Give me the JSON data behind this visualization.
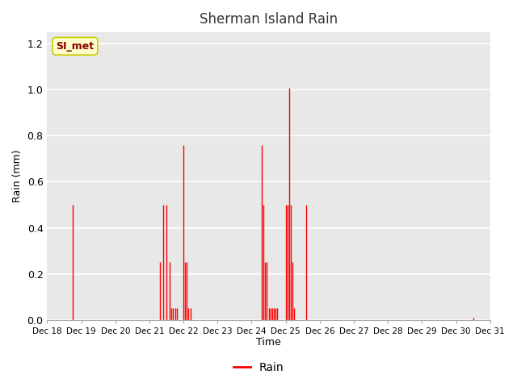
{
  "title": "Sherman Island Rain",
  "xlabel": "Time",
  "ylabel": "Rain (mm)",
  "ylim": [
    0,
    1.25
  ],
  "yticks": [
    0.0,
    0.2,
    0.4,
    0.6,
    0.8,
    1.0,
    1.2
  ],
  "xtick_labels": [
    "Dec 18",
    "Dec 19",
    "Dec 20",
    "Dec 21",
    "Dec 22",
    "Dec 23",
    "Dec 24",
    "Dec 25",
    "Dec 26",
    "Dec 27",
    "Dec 28",
    "Dec 29",
    "Dec 30",
    "Dec 31"
  ],
  "line_color": "#ff0000",
  "fig_bg": "#ffffff",
  "plot_bg": "#e8e8e8",
  "legend_label": "Rain",
  "annotation_text": "SI_met",
  "annotation_color": "#8b0000",
  "annotation_bg": "#ffffcc",
  "annotation_edge": "#cccc00",
  "data_x": [
    18.75,
    21.3,
    21.4,
    21.5,
    21.6,
    21.65,
    21.7,
    21.75,
    21.8,
    22.0,
    22.05,
    22.1,
    22.15,
    22.2,
    24.3,
    24.35,
    24.4,
    24.45,
    24.5,
    24.55,
    24.6,
    24.65,
    24.7,
    24.75,
    25.0,
    25.05,
    25.1,
    25.15,
    25.2,
    25.25,
    25.6,
    30.5
  ],
  "data_y": [
    0.5,
    0.25,
    0.5,
    0.5,
    0.25,
    0.05,
    0.05,
    0.05,
    0.05,
    0.76,
    0.25,
    0.25,
    0.05,
    0.05,
    0.76,
    0.5,
    0.25,
    0.25,
    0.05,
    0.05,
    0.05,
    0.05,
    0.05,
    0.05,
    0.5,
    0.5,
    1.01,
    0.5,
    0.25,
    0.05,
    0.5,
    0.01
  ]
}
